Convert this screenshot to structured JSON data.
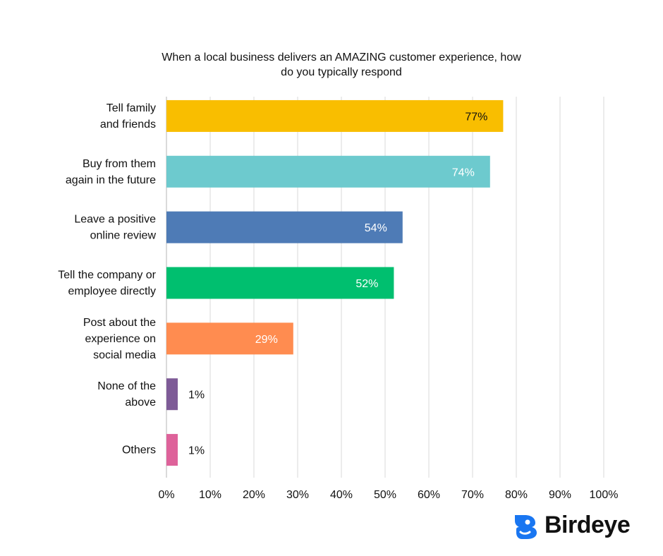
{
  "chart_data": {
    "type": "bar",
    "orientation": "horizontal",
    "title_lines": [
      "When a local business delivers an AMAZING customer experience, how",
      "do you typically respond"
    ],
    "categories": [
      [
        "Tell family",
        "and friends"
      ],
      [
        "Buy from them",
        "again in the future"
      ],
      [
        "Leave a positive",
        "online review"
      ],
      [
        "Tell the company or",
        "employee directly"
      ],
      [
        "Post about the",
        "experience on",
        "social media"
      ],
      [
        "None of the",
        "above"
      ],
      [
        "Others"
      ]
    ],
    "values": [
      77,
      74,
      54,
      52,
      29,
      1,
      1
    ],
    "value_labels": [
      "77%",
      "74%",
      "54%",
      "52%",
      "29%",
      "1%",
      "1%"
    ],
    "colors": [
      "#F9BE00",
      "#6DCACE",
      "#4E7BB6",
      "#00BF6F",
      "#FF8C50",
      "#7E5B97",
      "#DE629A"
    ],
    "label_colors": [
      "#111111",
      "#ffffff",
      "#ffffff",
      "#ffffff",
      "#ffffff",
      "#111111",
      "#111111"
    ],
    "xlim": [
      0,
      100
    ],
    "xticks": [
      0,
      10,
      20,
      30,
      40,
      50,
      60,
      70,
      80,
      90,
      100
    ],
    "xtick_labels": [
      "0%",
      "10%",
      "20%",
      "30%",
      "40%",
      "50%",
      "60%",
      "70%",
      "80%",
      "90%",
      "100%"
    ],
    "grid": true,
    "xlabel": "",
    "ylabel": ""
  },
  "logo": {
    "text": "Birdeye",
    "icon": "birdeye-logo-icon",
    "color": "#1976F1"
  }
}
